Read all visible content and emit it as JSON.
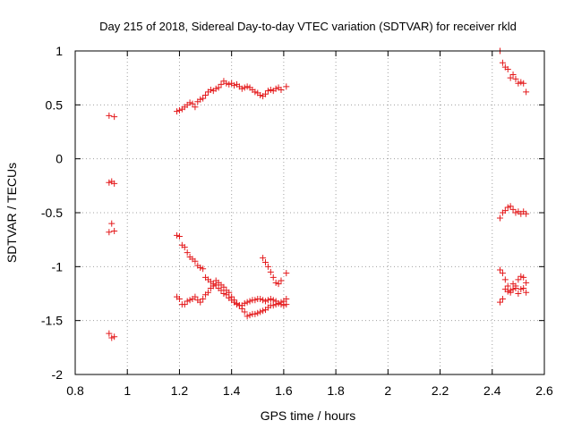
{
  "chart_data": {
    "type": "scatter",
    "title": "Day 215 of 2018, Sidereal Day-to-day VTEC variation (SDTVAR) for receiver rkld",
    "xlabel": "GPS time / hours",
    "ylabel": "SDTVAR / TECUs",
    "xlim": [
      0.8,
      2.6
    ],
    "ylim": [
      -2,
      1
    ],
    "grid": true,
    "marker": "+",
    "color": "#e41a1c",
    "x_ticks": [
      {
        "value": 0.8,
        "label": "0.8"
      },
      {
        "value": 1.0,
        "label": "1"
      },
      {
        "value": 1.2,
        "label": "1.2"
      },
      {
        "value": 1.4,
        "label": "1.4"
      },
      {
        "value": 1.6,
        "label": "1.6"
      },
      {
        "value": 1.8,
        "label": "1.8"
      },
      {
        "value": 2.0,
        "label": "2"
      },
      {
        "value": 2.2,
        "label": "2.2"
      },
      {
        "value": 2.4,
        "label": "2.4"
      },
      {
        "value": 2.6,
        "label": "2.6"
      }
    ],
    "y_ticks": [
      {
        "value": 1.0,
        "label": "1"
      },
      {
        "value": 0.5,
        "label": "0.5"
      },
      {
        "value": 0.0,
        "label": "0"
      },
      {
        "value": -0.5,
        "label": "-0.5"
      },
      {
        "value": -1.0,
        "label": "-1"
      },
      {
        "value": -1.5,
        "label": "-1.5"
      },
      {
        "value": -2.0,
        "label": "-2"
      }
    ],
    "series": [
      {
        "name": "SDTVAR",
        "points": [
          [
            0.93,
            0.4
          ],
          [
            0.95,
            0.39
          ],
          [
            0.93,
            -0.22
          ],
          [
            0.94,
            -0.21
          ],
          [
            0.95,
            -0.23
          ],
          [
            0.94,
            -0.6
          ],
          [
            0.93,
            -0.68
          ],
          [
            0.95,
            -0.67
          ],
          [
            0.93,
            -1.62
          ],
          [
            0.94,
            -1.66
          ],
          [
            0.95,
            -1.65
          ],
          [
            1.19,
            0.44
          ],
          [
            1.2,
            0.45
          ],
          [
            1.21,
            0.46
          ],
          [
            1.22,
            0.48
          ],
          [
            1.23,
            0.5
          ],
          [
            1.24,
            0.52
          ],
          [
            1.25,
            0.51
          ],
          [
            1.26,
            0.48
          ],
          [
            1.27,
            0.53
          ],
          [
            1.28,
            0.55
          ],
          [
            1.29,
            0.56
          ],
          [
            1.3,
            0.59
          ],
          [
            1.31,
            0.62
          ],
          [
            1.32,
            0.64
          ],
          [
            1.33,
            0.63
          ],
          [
            1.34,
            0.65
          ],
          [
            1.35,
            0.66
          ],
          [
            1.36,
            0.69
          ],
          [
            1.37,
            0.72
          ],
          [
            1.38,
            0.7
          ],
          [
            1.39,
            0.69
          ],
          [
            1.4,
            0.7
          ],
          [
            1.41,
            0.68
          ],
          [
            1.42,
            0.69
          ],
          [
            1.43,
            0.67
          ],
          [
            1.44,
            0.65
          ],
          [
            1.45,
            0.66
          ],
          [
            1.46,
            0.67
          ],
          [
            1.47,
            0.66
          ],
          [
            1.48,
            0.64
          ],
          [
            1.49,
            0.62
          ],
          [
            1.5,
            0.61
          ],
          [
            1.51,
            0.59
          ],
          [
            1.52,
            0.58
          ],
          [
            1.53,
            0.6
          ],
          [
            1.54,
            0.63
          ],
          [
            1.55,
            0.64
          ],
          [
            1.56,
            0.63
          ],
          [
            1.57,
            0.65
          ],
          [
            1.58,
            0.66
          ],
          [
            1.59,
            0.64
          ],
          [
            1.61,
            0.67
          ],
          [
            1.19,
            -0.71
          ],
          [
            1.2,
            -0.72
          ],
          [
            1.21,
            -0.8
          ],
          [
            1.22,
            -0.82
          ],
          [
            1.23,
            -0.87
          ],
          [
            1.24,
            -0.91
          ],
          [
            1.25,
            -0.93
          ],
          [
            1.26,
            -0.95
          ],
          [
            1.27,
            -0.99
          ],
          [
            1.28,
            -1.01
          ],
          [
            1.29,
            -1.02
          ],
          [
            1.3,
            -1.1
          ],
          [
            1.31,
            -1.12
          ],
          [
            1.32,
            -1.14
          ],
          [
            1.33,
            -1.16
          ],
          [
            1.34,
            -1.13
          ],
          [
            1.35,
            -1.15
          ],
          [
            1.36,
            -1.17
          ],
          [
            1.37,
            -1.19
          ],
          [
            1.38,
            -1.22
          ],
          [
            1.39,
            -1.24
          ],
          [
            1.4,
            -1.28
          ],
          [
            1.41,
            -1.31
          ],
          [
            1.42,
            -1.34
          ],
          [
            1.43,
            -1.36
          ],
          [
            1.44,
            -1.39
          ],
          [
            1.45,
            -1.42
          ],
          [
            1.46,
            -1.46
          ],
          [
            1.47,
            -1.45
          ],
          [
            1.48,
            -1.44
          ],
          [
            1.49,
            -1.44
          ],
          [
            1.5,
            -1.43
          ],
          [
            1.51,
            -1.42
          ],
          [
            1.52,
            -1.41
          ],
          [
            1.53,
            -1.4
          ],
          [
            1.54,
            -1.38
          ],
          [
            1.55,
            -1.36
          ],
          [
            1.56,
            -1.36
          ],
          [
            1.57,
            -1.35
          ],
          [
            1.58,
            -1.34
          ],
          [
            1.59,
            -1.33
          ],
          [
            1.6,
            -1.32
          ],
          [
            1.52,
            -0.92
          ],
          [
            1.53,
            -0.96
          ],
          [
            1.54,
            -1.0
          ],
          [
            1.55,
            -1.05
          ],
          [
            1.56,
            -1.1
          ],
          [
            1.57,
            -1.15
          ],
          [
            1.58,
            -1.16
          ],
          [
            1.59,
            -1.13
          ],
          [
            1.61,
            -1.06
          ],
          [
            1.19,
            -1.28
          ],
          [
            1.2,
            -1.3
          ],
          [
            1.21,
            -1.35
          ],
          [
            1.22,
            -1.35
          ],
          [
            1.23,
            -1.32
          ],
          [
            1.24,
            -1.31
          ],
          [
            1.25,
            -1.3
          ],
          [
            1.26,
            -1.28
          ],
          [
            1.27,
            -1.31
          ],
          [
            1.28,
            -1.33
          ],
          [
            1.29,
            -1.3
          ],
          [
            1.3,
            -1.26
          ],
          [
            1.31,
            -1.24
          ],
          [
            1.32,
            -1.2
          ],
          [
            1.33,
            -1.18
          ],
          [
            1.34,
            -1.17
          ],
          [
            1.35,
            -1.2
          ],
          [
            1.36,
            -1.22
          ],
          [
            1.37,
            -1.25
          ],
          [
            1.38,
            -1.26
          ],
          [
            1.39,
            -1.29
          ],
          [
            1.4,
            -1.31
          ],
          [
            1.41,
            -1.33
          ],
          [
            1.42,
            -1.35
          ],
          [
            1.43,
            -1.36
          ],
          [
            1.44,
            -1.36
          ],
          [
            1.45,
            -1.34
          ],
          [
            1.46,
            -1.33
          ],
          [
            1.47,
            -1.32
          ],
          [
            1.48,
            -1.31
          ],
          [
            1.49,
            -1.31
          ],
          [
            1.5,
            -1.3
          ],
          [
            1.51,
            -1.3
          ],
          [
            1.52,
            -1.31
          ],
          [
            1.53,
            -1.32
          ],
          [
            1.54,
            -1.31
          ],
          [
            1.55,
            -1.3
          ],
          [
            1.56,
            -1.31
          ],
          [
            1.57,
            -1.32
          ],
          [
            1.58,
            -1.34
          ],
          [
            1.59,
            -1.35
          ],
          [
            1.6,
            -1.36
          ],
          [
            1.61,
            -1.3
          ],
          [
            1.61,
            -1.35
          ],
          [
            2.43,
            1.0
          ],
          [
            2.44,
            0.89
          ],
          [
            2.45,
            0.85
          ],
          [
            2.46,
            0.83
          ],
          [
            2.47,
            0.75
          ],
          [
            2.48,
            0.78
          ],
          [
            2.49,
            0.74
          ],
          [
            2.5,
            0.7
          ],
          [
            2.51,
            0.71
          ],
          [
            2.52,
            0.7
          ],
          [
            2.53,
            0.62
          ],
          [
            2.43,
            -0.55
          ],
          [
            2.44,
            -0.5
          ],
          [
            2.45,
            -0.48
          ],
          [
            2.46,
            -0.45
          ],
          [
            2.47,
            -0.44
          ],
          [
            2.48,
            -0.47
          ],
          [
            2.49,
            -0.5
          ],
          [
            2.5,
            -0.49
          ],
          [
            2.51,
            -0.51
          ],
          [
            2.52,
            -0.49
          ],
          [
            2.53,
            -0.51
          ],
          [
            2.43,
            -1.03
          ],
          [
            2.44,
            -1.06
          ],
          [
            2.45,
            -1.12
          ],
          [
            2.46,
            -1.18
          ],
          [
            2.47,
            -1.22
          ],
          [
            2.48,
            -1.16
          ],
          [
            2.49,
            -1.2
          ],
          [
            2.5,
            -1.25
          ],
          [
            2.51,
            -1.21
          ],
          [
            2.52,
            -1.2
          ],
          [
            2.53,
            -1.24
          ],
          [
            2.43,
            -1.33
          ],
          [
            2.44,
            -1.3
          ],
          [
            2.45,
            -1.21
          ],
          [
            2.46,
            -1.23
          ],
          [
            2.47,
            -1.24
          ],
          [
            2.48,
            -1.21
          ],
          [
            2.49,
            -1.18
          ],
          [
            2.5,
            -1.12
          ],
          [
            2.51,
            -1.09
          ],
          [
            2.52,
            -1.1
          ],
          [
            2.53,
            -1.15
          ]
        ]
      }
    ]
  }
}
